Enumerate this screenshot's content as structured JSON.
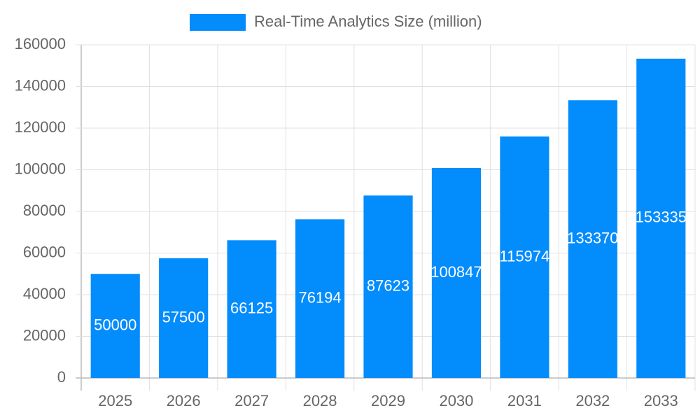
{
  "chart_data": {
    "type": "bar",
    "series": [
      {
        "name": "Real-Time Analytics Size (million)",
        "color": "#038cfc",
        "values": [
          50000,
          57500,
          66125,
          76194,
          87623,
          100847,
          115974,
          133370,
          153335
        ]
      }
    ],
    "categories": [
      "2025",
      "2026",
      "2027",
      "2028",
      "2029",
      "2030",
      "2031",
      "2032",
      "2033"
    ],
    "ylim": [
      0,
      160000
    ],
    "yticks": [
      0,
      20000,
      40000,
      60000,
      80000,
      100000,
      120000,
      140000,
      160000
    ],
    "grid": true,
    "legend": "top",
    "value_label_color": "#ffffff"
  }
}
